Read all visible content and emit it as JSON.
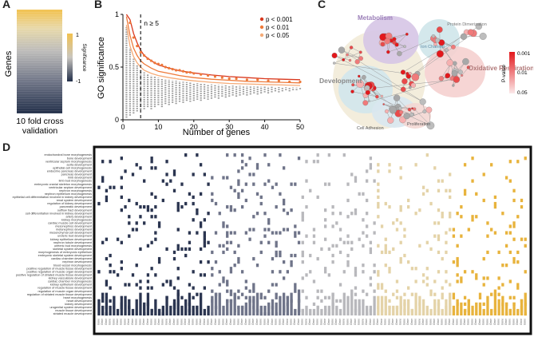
{
  "panel_letters": [
    "A",
    "B",
    "C",
    "D"
  ],
  "panelA": {
    "y_label": "Genes",
    "x_label_line1": "10 fold cross",
    "x_label_line2": "validation",
    "colorbar_title": "Significance",
    "colorbar_max": "1",
    "colorbar_min": "-1",
    "colors": {
      "top": "#f2c14e",
      "mid": "#c9c6c0",
      "bottom": "#23304a"
    }
  },
  "chart_data": [
    {
      "type": "scatter",
      "panel": "B",
      "title": "",
      "xlabel": "Number of genes",
      "ylabel": "GO significance",
      "xlim": [
        0,
        50
      ],
      "ylim": [
        0,
        1
      ],
      "x_ticks": [
        "0",
        "10",
        "20",
        "30",
        "40",
        "50"
      ],
      "y_ticks": [
        "0",
        "0.5",
        "1"
      ],
      "threshold_label": "n ≥ 5",
      "threshold_x": 5,
      "legend": [
        {
          "label": "p < 0.001",
          "color": "#d9381e"
        },
        {
          "label": "p < 0.01",
          "color": "#ee7a3a"
        },
        {
          "label": "p < 0.05",
          "color": "#f5ab78"
        }
      ],
      "curves": [
        {
          "name": "p < 0.001",
          "color": "#d9381e",
          "x": [
            1,
            2,
            3,
            4,
            5,
            6,
            8,
            10,
            13,
            16,
            20,
            25,
            30,
            35,
            40,
            45,
            50
          ],
          "y": [
            1.0,
            0.95,
            0.82,
            0.73,
            0.66,
            0.61,
            0.56,
            0.52,
            0.49,
            0.465,
            0.445,
            0.425,
            0.41,
            0.4,
            0.39,
            0.385,
            0.38
          ]
        },
        {
          "name": "p < 0.01",
          "color": "#ee7a3a",
          "x": [
            1,
            2,
            3,
            4,
            5,
            6,
            8,
            10,
            13,
            16,
            20,
            25,
            30,
            35,
            40,
            45,
            50
          ],
          "y": [
            0.98,
            0.8,
            0.68,
            0.61,
            0.56,
            0.53,
            0.49,
            0.46,
            0.44,
            0.42,
            0.4,
            0.385,
            0.375,
            0.365,
            0.36,
            0.355,
            0.35
          ]
        },
        {
          "name": "p < 0.05",
          "color": "#f5ab78",
          "x": [
            1,
            2,
            3,
            4,
            5,
            6,
            8,
            10,
            13,
            16,
            20,
            25,
            30,
            35,
            40,
            45,
            50
          ],
          "y": [
            0.9,
            0.7,
            0.6,
            0.54,
            0.5,
            0.47,
            0.44,
            0.42,
            0.4,
            0.385,
            0.37,
            0.355,
            0.345,
            0.34,
            0.335,
            0.33,
            0.325
          ]
        }
      ],
      "top_points_x": [
        2,
        3,
        4,
        5,
        6,
        7,
        8,
        9,
        10,
        11,
        12,
        13,
        14,
        15,
        16,
        17,
        18,
        19,
        20,
        22,
        24,
        26,
        28,
        30,
        32,
        35,
        38,
        41,
        44,
        47,
        50
      ],
      "top_points_y": [
        0.92,
        0.78,
        0.7,
        0.64,
        0.61,
        0.58,
        0.56,
        0.54,
        0.53,
        0.52,
        0.5,
        0.49,
        0.48,
        0.47,
        0.47,
        0.46,
        0.45,
        0.45,
        0.44,
        0.43,
        0.42,
        0.41,
        0.4,
        0.39,
        0.39,
        0.38,
        0.38,
        0.37,
        0.37,
        0.36,
        0.36
      ],
      "column_min_x": [
        1,
        2,
        3,
        4,
        5,
        6,
        7,
        8,
        9,
        10,
        11,
        12,
        13,
        14,
        15,
        16,
        17,
        18,
        19,
        20,
        21,
        22,
        23,
        24,
        25,
        26,
        27,
        28,
        29,
        30,
        31,
        32,
        33,
        34,
        35,
        36,
        37,
        38,
        39,
        40,
        41,
        42,
        43,
        44,
        45,
        46,
        47,
        48,
        49,
        50
      ],
      "column_min_y": [
        0.02,
        0.04,
        0.06,
        0.08,
        0.1,
        0.1,
        0.12,
        0.1,
        0.12,
        0.14,
        0.12,
        0.15,
        0.14,
        0.16,
        0.15,
        0.17,
        0.16,
        0.18,
        0.17,
        0.18,
        0.19,
        0.18,
        0.2,
        0.19,
        0.2,
        0.21,
        0.2,
        0.22,
        0.21,
        0.22,
        0.23,
        0.22,
        0.23,
        0.24,
        0.23,
        0.24,
        0.25,
        0.24,
        0.25,
        0.26,
        0.25,
        0.26,
        0.27,
        0.26,
        0.27,
        0.28,
        0.27,
        0.28,
        0.28,
        0.29
      ]
    },
    {
      "type": "heatmap",
      "panel": "D",
      "rows": [
        "endochondral bone morphogenesis",
        "bone development",
        "ventricular septum morphogenesis",
        "aorta development",
        "epithelial cell morphogenesis",
        "endocrine pancreas development",
        "pancreas development",
        "limb development",
        "limb bud morphogenesis",
        "embryonic cranial skeleton morphogenesis",
        "ventricular septum development",
        "nephron morphogenesis",
        "nephron epithelium morphogenesis",
        "epithelial cell differentiation involved in kidney development",
        "renal system development",
        "regulation of kidney development",
        "pancreatic development",
        "outflow tract development",
        "cell differentiation involved in kidney development",
        "artery development",
        "kidney morphogenesis",
        "cardiac muscle cell development",
        "mesonephros development",
        "metanephros development",
        "mesenchymal cell development",
        "ureteric bud development",
        "kidney epithelium development",
        "nephron tubule development",
        "ureteric bud morphogenesis",
        "skeletal system development",
        "morphogenesis of embryonic epithelium",
        "embryonic skeletal system development",
        "cardiac chamber development",
        "nephron development",
        "blood vessel morphogenesis",
        "positive regulation of muscle tissue development",
        "positive regulation of muscle organ development",
        "positive regulation of striated muscle tissue development",
        "kidney vasculature development",
        "cardiac chamber morphogenesis",
        "kidney epithelium development",
        "regulation of muscle tissue development",
        "regulation of muscle organ development",
        "regulation of striated muscle tissue development",
        "heart morphogenesis",
        "heart development",
        "kidney development",
        "urogenital system development",
        "muscle tissue development",
        "striated muscle development"
      ],
      "column_groups": [
        {
          "color": "#2b3550",
          "count": 30
        },
        {
          "color": "#6f7489",
          "count": 24
        },
        {
          "color": "#b8b8bc",
          "count": 20
        },
        {
          "color": "#e4d3a8",
          "count": 20
        },
        {
          "color": "#e8b33c",
          "count": 20
        }
      ],
      "col_label_sample": "Gene"
    }
  ],
  "panelC": {
    "legend_title": "P-value",
    "legend_values": [
      "0.001",
      "0.01",
      "0.05"
    ],
    "clusters": [
      {
        "label": "Metabolism",
        "color": "#9b7fb8"
      },
      {
        "label": "Ion Channel",
        "color": "#5e8aa6"
      },
      {
        "label": "Protein Dimerization",
        "color": "#777777"
      },
      {
        "label": "Oxidative Respiration",
        "color": "#b07878"
      },
      {
        "label": "Development",
        "color": "#8a8a8a"
      },
      {
        "label": "Cell Adhesion",
        "color": "#7a7a7a"
      },
      {
        "label": "Proliferation",
        "color": "#8a7a6a"
      }
    ]
  }
}
